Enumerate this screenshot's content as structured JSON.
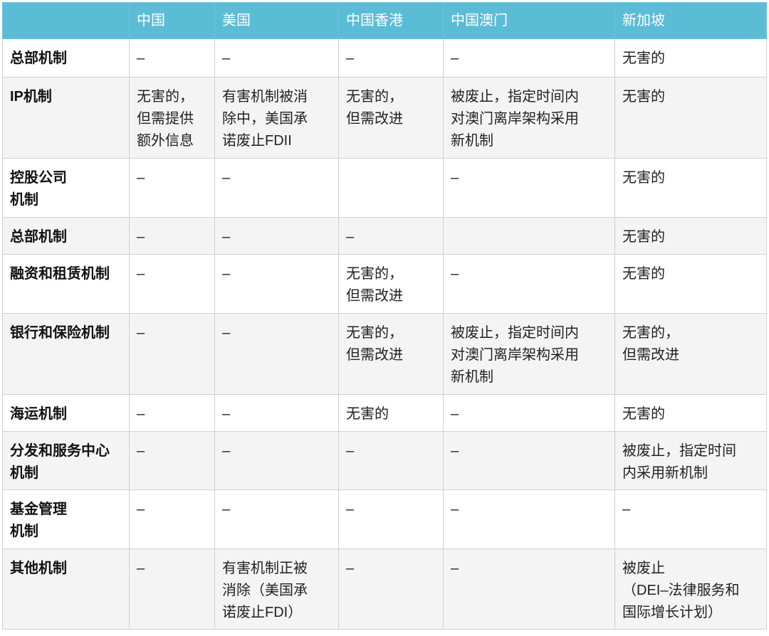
{
  "header": [
    "",
    "中国",
    "美国",
    "中国香港",
    "中国澳门",
    "新加坡"
  ],
  "colors": {
    "header_bg": "#5bbcd6",
    "header_text": "#ffffff",
    "alt_row_bg": "#f4f4f4"
  },
  "rows": [
    [
      "总部机制",
      "–",
      "–",
      "–",
      "–",
      "无害的"
    ],
    [
      "IP机制",
      "无害的，\n但需提供\n额外信息",
      "有害机制被消\n除中，美国承\n诺废止FDII",
      "无害的，\n但需改进",
      "被废止，指定时间内\n对澳门离岸架构采用\n新机制",
      "无害的"
    ],
    [
      "控股公司\n机制",
      "–",
      "–",
      "",
      "–",
      "无害的"
    ],
    [
      "总部机制",
      "–",
      "–",
      "–",
      "",
      "无害的"
    ],
    [
      "融资和租赁机制",
      "–",
      "–",
      "无害的，\n但需改进",
      "–",
      "无害的"
    ],
    [
      "银行和保险机制",
      "–",
      "–",
      "无害的，\n但需改进",
      "被废止，指定时间内\n对澳门离岸架构采用\n新机制",
      "无害的，\n但需改进"
    ],
    [
      "海运机制",
      "–",
      "–",
      "无害的",
      "–",
      "无害的"
    ],
    [
      "分发和服务中心\n机制",
      "–",
      "–",
      "–",
      "–",
      "被废止，指定时间\n内采用新机制"
    ],
    [
      "基金管理\n机制",
      "–",
      "–",
      "–",
      "–",
      "–"
    ],
    [
      "其他机制",
      "–",
      "有害机制正被\n消除（美国承\n诺废止FDI）",
      "–",
      "–",
      "被废止\n（DEI–法律服务和\n国际增长计划）"
    ]
  ]
}
